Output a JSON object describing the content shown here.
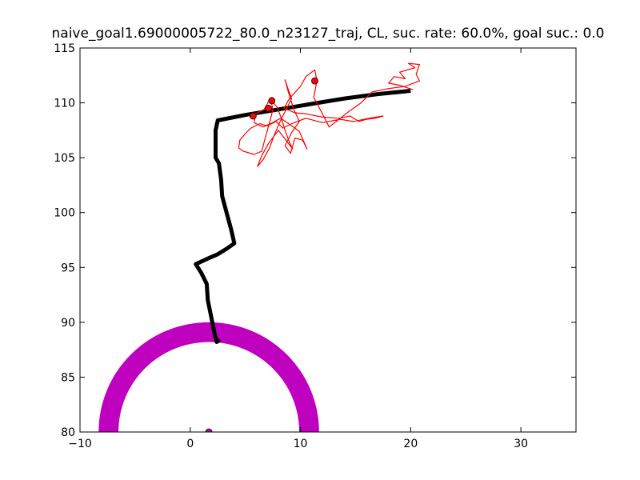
{
  "chart_data": {
    "type": "line",
    "title": "naive_goal1.69000005722_80.0_n23127_traj, CL, suc. rate: 60.0%, goal suc.: 0.0",
    "xlabel": "",
    "ylabel": "",
    "xlim": [
      -10,
      35
    ],
    "ylim": [
      80,
      115
    ],
    "xticks": [
      -10,
      0,
      10,
      20,
      30
    ],
    "yticks": [
      80,
      85,
      90,
      95,
      100,
      105,
      110,
      115
    ],
    "grid": false,
    "goal_region": {
      "center": [
        1.69,
        80.0
      ],
      "inner_radius": 8.2,
      "outer_radius": 10.0,
      "color": "#bf00bf"
    },
    "goal_marker": {
      "x": 1.69,
      "y": 80.0,
      "color": "#bf00bf"
    },
    "series": [
      {
        "color": "#000000",
        "style": "thick",
        "points": [
          [
            20.0,
            111.1
          ],
          [
            17.0,
            110.8
          ],
          [
            14.0,
            110.4
          ],
          [
            11.0,
            109.9
          ],
          [
            8.0,
            109.4
          ],
          [
            5.0,
            108.9
          ],
          [
            2.5,
            108.4
          ],
          [
            2.3,
            107.5
          ],
          [
            2.3,
            106.5
          ],
          [
            2.3,
            105.0
          ],
          [
            2.6,
            104.5
          ],
          [
            2.8,
            103.0
          ],
          [
            2.9,
            101.5
          ],
          [
            3.3,
            100.0
          ],
          [
            3.7,
            98.5
          ],
          [
            4.0,
            97.2
          ],
          [
            3.3,
            96.7
          ],
          [
            2.5,
            96.2
          ],
          [
            1.8,
            95.9
          ],
          [
            0.5,
            95.3
          ],
          [
            1.0,
            94.5
          ],
          [
            1.5,
            93.5
          ],
          [
            1.6,
            92.0
          ],
          [
            1.9,
            90.5
          ],
          [
            2.2,
            89.0
          ],
          [
            2.4,
            88.2
          ],
          [
            2.7,
            88.4
          ]
        ]
      },
      {
        "color": "#ff0000",
        "style": "thin",
        "points": [
          [
            20.2,
            111.2
          ],
          [
            19.0,
            111.6
          ],
          [
            18.0,
            111.8
          ],
          [
            18.5,
            112.4
          ],
          [
            19.5,
            112.2
          ],
          [
            19.0,
            112.8
          ],
          [
            20.4,
            113.2
          ],
          [
            19.8,
            113.6
          ],
          [
            20.8,
            113.5
          ],
          [
            20.5,
            112.6
          ],
          [
            20.8,
            112.0
          ],
          [
            19.5,
            111.5
          ],
          [
            18.0,
            111.3
          ],
          [
            16.5,
            111.0
          ],
          [
            16.0,
            110.5
          ],
          [
            15.5,
            110.0
          ],
          [
            14.5,
            109.3
          ],
          [
            13.5,
            108.5
          ],
          [
            12.6,
            107.8
          ],
          [
            12.0,
            109.0
          ],
          [
            11.2,
            110.5
          ],
          [
            11.5,
            112.0
          ],
          [
            11.3,
            113.0
          ],
          [
            10.5,
            112.4
          ],
          [
            10.0,
            111.5
          ],
          [
            9.0,
            110.4
          ],
          [
            8.5,
            109.5
          ],
          [
            9.5,
            109.1
          ],
          [
            10.5,
            109.0
          ],
          [
            12.0,
            108.7
          ],
          [
            13.5,
            108.6
          ],
          [
            14.5,
            108.8
          ],
          [
            15.3,
            108.3
          ],
          [
            16.0,
            108.5
          ],
          [
            16.8,
            108.6
          ],
          [
            17.5,
            108.8
          ],
          [
            16.2,
            108.6
          ],
          [
            14.8,
            108.3
          ],
          [
            13.6,
            108.5
          ],
          [
            12.0,
            108.2
          ],
          [
            10.5,
            108.6
          ],
          [
            9.2,
            108.1
          ],
          [
            8.4,
            107.7
          ],
          [
            7.8,
            108.3
          ],
          [
            7.0,
            107.9
          ],
          [
            6.3,
            108.1
          ],
          [
            5.5,
            107.7
          ],
          [
            5.0,
            107.2
          ],
          [
            4.5,
            106.6
          ],
          [
            4.4,
            105.9
          ],
          [
            4.8,
            105.6
          ],
          [
            5.8,
            105.3
          ],
          [
            6.5,
            105.6
          ],
          [
            6.8,
            106.8
          ],
          [
            7.2,
            108.2
          ],
          [
            7.5,
            109.4
          ],
          [
            7.3,
            110.3
          ],
          [
            7.9,
            109.6
          ],
          [
            8.3,
            108.5
          ],
          [
            8.6,
            107.5
          ],
          [
            9.0,
            106.4
          ],
          [
            9.3,
            105.8
          ],
          [
            8.6,
            106.7
          ],
          [
            8.0,
            107.5
          ],
          [
            7.1,
            106.3
          ],
          [
            6.5,
            105.2
          ],
          [
            6.1,
            104.2
          ],
          [
            6.6,
            104.8
          ],
          [
            7.2,
            105.9
          ],
          [
            7.6,
            107.0
          ],
          [
            8.1,
            108.2
          ],
          [
            8.6,
            109.2
          ],
          [
            9.2,
            110.4
          ],
          [
            8.9,
            111.2
          ],
          [
            8.6,
            112.1
          ],
          [
            8.9,
            111.0
          ],
          [
            9.4,
            109.4
          ],
          [
            9.9,
            108.3
          ],
          [
            9.2,
            107.3
          ],
          [
            8.6,
            106.1
          ],
          [
            9.1,
            105.4
          ],
          [
            9.5,
            106.8
          ],
          [
            10.2,
            106.6
          ],
          [
            10.6,
            105.8
          ],
          [
            9.9,
            107.4
          ],
          [
            8.8,
            108.2
          ],
          [
            8.2,
            108.6
          ],
          [
            7.3,
            108.1
          ],
          [
            6.6,
            107.8
          ],
          [
            5.8,
            108.2
          ],
          [
            5.9,
            109.0
          ],
          [
            6.7,
            109.4
          ],
          [
            7.1,
            110.1
          ]
        ]
      }
    ],
    "markers": [
      {
        "x": 5.7,
        "y": 108.8,
        "color": "#ff0000"
      },
      {
        "x": 7.1,
        "y": 109.5,
        "color": "#ff0000"
      },
      {
        "x": 7.4,
        "y": 110.2,
        "color": "#ff0000"
      },
      {
        "x": 11.3,
        "y": 112.0,
        "color": "#ff0000"
      }
    ]
  }
}
